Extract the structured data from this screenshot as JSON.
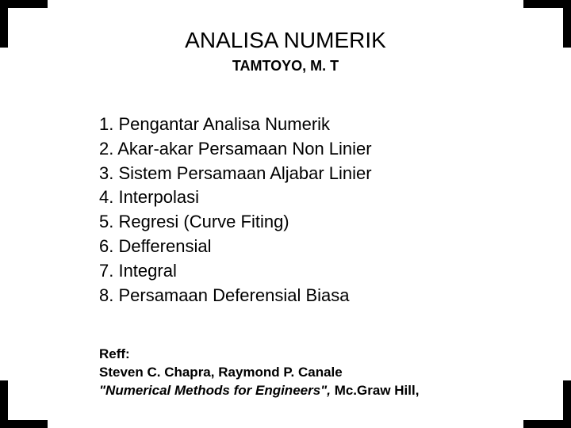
{
  "title": "ANALISA NUMERIK",
  "subtitle": "TAMTOYO, M. T",
  "topics": [
    "1. Pengantar Analisa Numerik",
    "2. Akar-akar Persamaan Non Linier",
    "3. Sistem Persamaan Aljabar Linier",
    "4. Interpolasi",
    "5. Regresi (Curve Fiting)",
    "6. Defferensial",
    "7. Integral",
    "8. Persamaan Deferensial Biasa"
  ],
  "references": {
    "label": "Reff:",
    "author": "Steven C. Chapra, Raymond P. Canale",
    "book_title": "\"Numerical Methods for Engineers\",",
    "publisher": "  Mc.Graw Hill,"
  },
  "colors": {
    "background": "#ffffff",
    "text": "#000000",
    "corner": "#000000"
  }
}
